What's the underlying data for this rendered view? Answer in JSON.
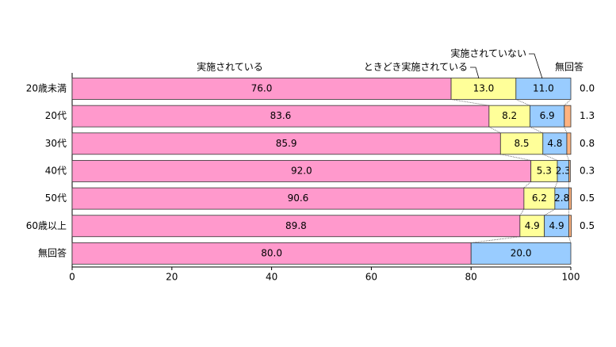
{
  "chart_data": {
    "type": "stacked-bar-horizontal",
    "categories": [
      "20歳未満",
      "20代",
      "30代",
      "40代",
      "50代",
      "60歳以上",
      "無回答"
    ],
    "series": [
      {
        "name": "実施されている",
        "color": "#ff99cc",
        "values": [
          76.0,
          83.6,
          85.9,
          92.0,
          90.6,
          89.8,
          80.0
        ],
        "value_labels": [
          "76.0",
          "83.6",
          "85.9",
          "92.0",
          "90.6",
          "89.8",
          "80.0"
        ]
      },
      {
        "name": "ときどき実施されている",
        "color": "#ffff99",
        "values": [
          13.0,
          8.2,
          8.5,
          5.3,
          6.2,
          4.9,
          null
        ],
        "value_labels": [
          "13.0",
          "8.2",
          "8.5",
          "5.3",
          "6.2",
          "4.9",
          null
        ]
      },
      {
        "name": "実施されていない",
        "color": "#99ccff",
        "values": [
          11.0,
          6.9,
          4.8,
          2.3,
          2.8,
          4.9,
          20.0
        ],
        "value_labels": [
          "11.0",
          "6.9",
          "4.8",
          "2.3",
          "2.8",
          "4.9",
          "20.0"
        ]
      },
      {
        "name": "無回答",
        "color": "#ffb380",
        "values": [
          0.0,
          1.3,
          0.8,
          0.3,
          0.5,
          0.5,
          null
        ],
        "value_labels": [
          "0.0",
          "1.3",
          "0.8",
          "0.3",
          "0.5",
          "0.5",
          null
        ]
      }
    ],
    "xlim": [
      0,
      100
    ],
    "xticks": [
      0,
      20,
      40,
      60,
      80,
      100
    ]
  }
}
